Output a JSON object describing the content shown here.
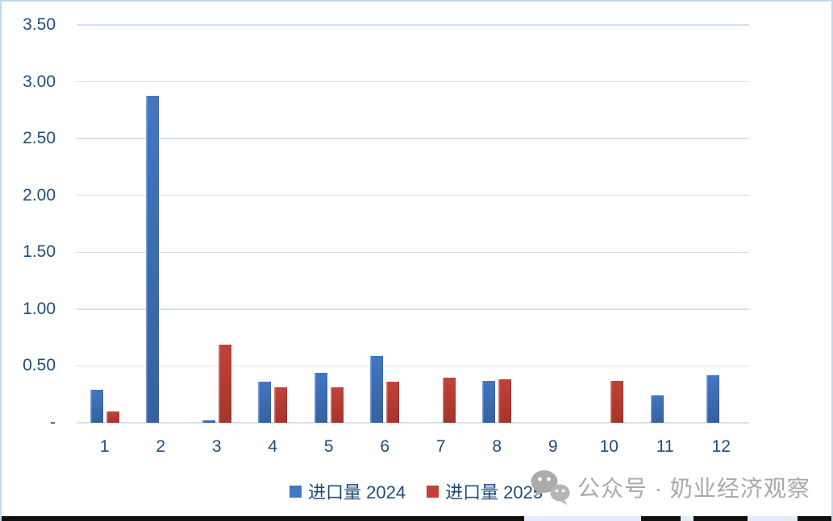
{
  "chart_data": {
    "type": "bar",
    "title": "",
    "xlabel": "",
    "ylabel": "",
    "categories": [
      "1",
      "2",
      "3",
      "4",
      "5",
      "6",
      "7",
      "8",
      "9",
      "10",
      "11",
      "12"
    ],
    "series": [
      {
        "name": "进口量 2024",
        "color": "#4277C2",
        "color_dark": "#35619F",
        "values": [
          0.29,
          2.88,
          0.02,
          0.36,
          0.44,
          0.59,
          0,
          0.37,
          0,
          0,
          0.24,
          0.42
        ]
      },
      {
        "name": "进口量 2025",
        "color": "#C2423A",
        "color_dark": "#A5342A",
        "values": [
          0.1,
          0,
          0.69,
          0.31,
          0.31,
          0.36,
          0.4,
          0.38,
          0,
          0.37,
          0,
          0
        ]
      }
    ],
    "ylim": [
      0,
      3.5
    ],
    "ytick_step": 0.5,
    "ytick_labels_bottom_to_top": [
      "-",
      "0.50",
      "1.00",
      "1.50",
      "2.00",
      "2.50",
      "3.00",
      "3.50"
    ],
    "grid": true,
    "legend_position": "bottom"
  },
  "watermark": {
    "icon": "wechat-icon",
    "text": "公众号 · 奶业经济观察"
  },
  "colors": {
    "axis_label": "#1F4E79",
    "gridline": "#D5E2F2",
    "watermark_text": "#A9A9A9",
    "frame_border": "#C3D6EB"
  }
}
